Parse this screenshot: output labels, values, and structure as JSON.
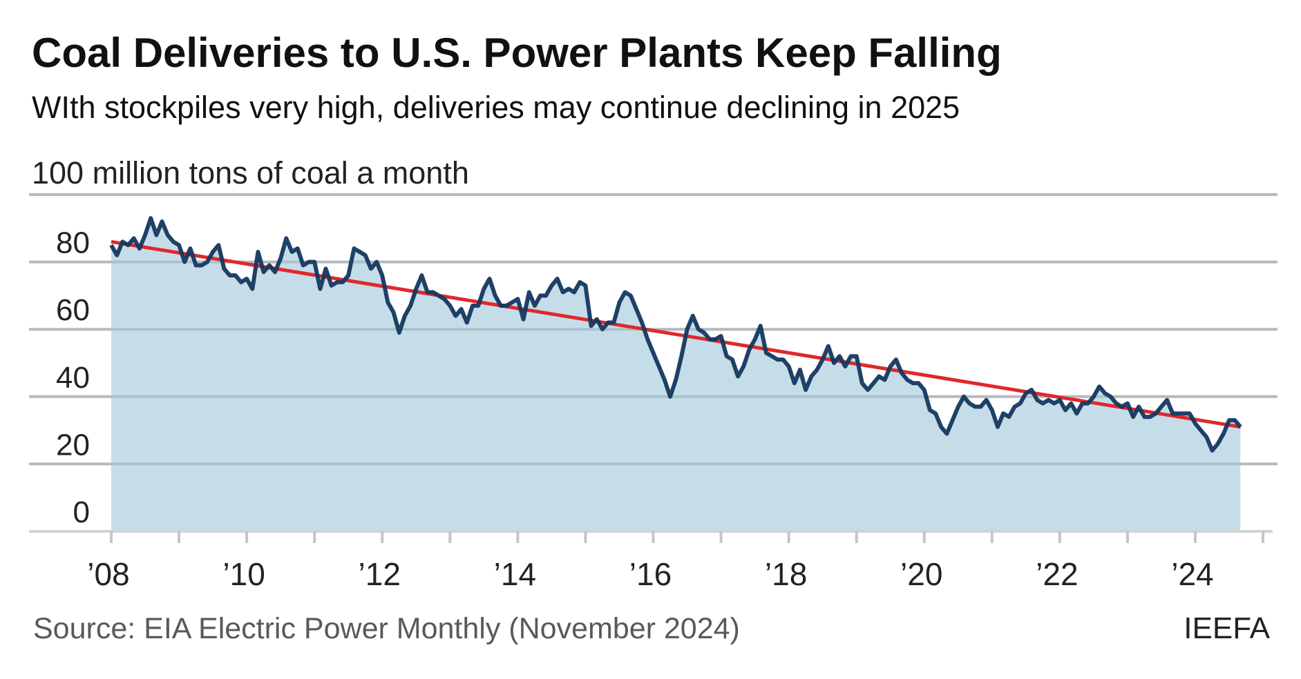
{
  "chart_data": {
    "type": "area",
    "title": "Coal Deliveries to U.S. Power Plants Keep Falling",
    "subtitle": "WIth stockpiles very high, deliveries may continue declining in 2025",
    "ylabel": "100 million tons of coal a month",
    "xlabel": "",
    "ylim": [
      0,
      100
    ],
    "yticks": [
      {
        "value": 0,
        "label": "0"
      },
      {
        "value": 20,
        "label": "20"
      },
      {
        "value": 40,
        "label": "40"
      },
      {
        "value": 60,
        "label": "60"
      },
      {
        "value": 80,
        "label": "80"
      }
    ],
    "xlim": [
      2008,
      2025
    ],
    "xticks": [
      {
        "value": 2008,
        "label": "’08"
      },
      {
        "value": 2010,
        "label": "’10"
      },
      {
        "value": 2012,
        "label": "’12"
      },
      {
        "value": 2014,
        "label": "’14"
      },
      {
        "value": 2016,
        "label": "’16"
      },
      {
        "value": 2018,
        "label": "’18"
      },
      {
        "value": 2020,
        "label": "’20"
      },
      {
        "value": 2022,
        "label": "’22"
      },
      {
        "value": 2024,
        "label": "’24"
      }
    ],
    "grid": true,
    "series": [
      {
        "frequency": "monthly",
        "start": "2008-01",
        "end": "2024-09",
        "color": "#14375f",
        "fill": "#c5dde9",
        "values": [
          85,
          82,
          86,
          85,
          87,
          84,
          88,
          93,
          88,
          92,
          88,
          86,
          85,
          80,
          84,
          79,
          79,
          80,
          83,
          85,
          78,
          76,
          76,
          74,
          75,
          72,
          83,
          77,
          79,
          77,
          81,
          87,
          83,
          84,
          79,
          80,
          80,
          72,
          78,
          73,
          74,
          74,
          76,
          84,
          83,
          82,
          78,
          80,
          76,
          68,
          65,
          59,
          64,
          67,
          72,
          76,
          71,
          71,
          70,
          69,
          67,
          64,
          66,
          62,
          67,
          67,
          72,
          75,
          70,
          67,
          67,
          68,
          69,
          63,
          71,
          67,
          70,
          70,
          73,
          75,
          71,
          72,
          71,
          74,
          73,
          61,
          63,
          60,
          62,
          62,
          68,
          71,
          70,
          66,
          62,
          57,
          53,
          49,
          45,
          40,
          45,
          52,
          60,
          64,
          60,
          59,
          57,
          57,
          58,
          52,
          51,
          46,
          49,
          54,
          57,
          61,
          53,
          52,
          51,
          51,
          49,
          44,
          48,
          42,
          46,
          48,
          51,
          55,
          50,
          52,
          49,
          52,
          52,
          44,
          42,
          44,
          46,
          45,
          49,
          51,
          47,
          45,
          44,
          44,
          42,
          36,
          35,
          31,
          29,
          33,
          37,
          40,
          38,
          37,
          37,
          39,
          36,
          31,
          35,
          34,
          37,
          38,
          41,
          42,
          39,
          38,
          39,
          38,
          39,
          36,
          38,
          35,
          38,
          38,
          40,
          43,
          41,
          40,
          38,
          37,
          38,
          34,
          37,
          34,
          34,
          35,
          37,
          39,
          35,
          35,
          35,
          35,
          32,
          30,
          28,
          24,
          26,
          29,
          33,
          33,
          31
        ]
      }
    ],
    "trendline": {
      "color": "#e0282a",
      "start": {
        "x": 2008.0,
        "y": 86
      },
      "end": {
        "x": 2024.67,
        "y": 31
      }
    }
  },
  "footer": {
    "source": "Source: EIA Electric Power Monthly (November 2024)",
    "brand": "IEEFA"
  }
}
